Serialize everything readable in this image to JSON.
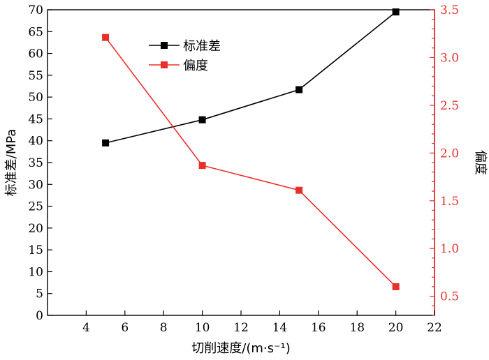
{
  "chart_data": {
    "type": "line",
    "xlabel": "切削速度/(m·s⁻¹)",
    "ylabel_left": "标准差/MPa",
    "ylabel_right": "偏度",
    "xlim": [
      2,
      22
    ],
    "xticks": [
      4,
      6,
      8,
      10,
      12,
      14,
      16,
      18,
      20,
      22
    ],
    "ylim_left": [
      0,
      70
    ],
    "yticks_left": [
      0,
      5,
      10,
      15,
      20,
      25,
      30,
      35,
      40,
      45,
      50,
      55,
      60,
      65,
      70
    ],
    "ylim_right": [
      0.3,
      3.5
    ],
    "yticks_right": [
      "0.5",
      "1.0",
      "1.5",
      "2.0",
      "2.5",
      "3.0",
      "3.5"
    ],
    "grid": false,
    "legend": "top-left",
    "series": [
      {
        "name": "标准差",
        "axis": "left",
        "color": "#000000",
        "marker": "square",
        "x": [
          5,
          10,
          15,
          20
        ],
        "values": [
          39.5,
          44.8,
          51.7,
          69.5
        ]
      },
      {
        "name": "偏度",
        "axis": "right",
        "color": "#e8302a",
        "marker": "square",
        "x": [
          5,
          10,
          15,
          20
        ],
        "values": [
          3.21,
          1.87,
          1.61,
          0.6
        ]
      }
    ]
  }
}
